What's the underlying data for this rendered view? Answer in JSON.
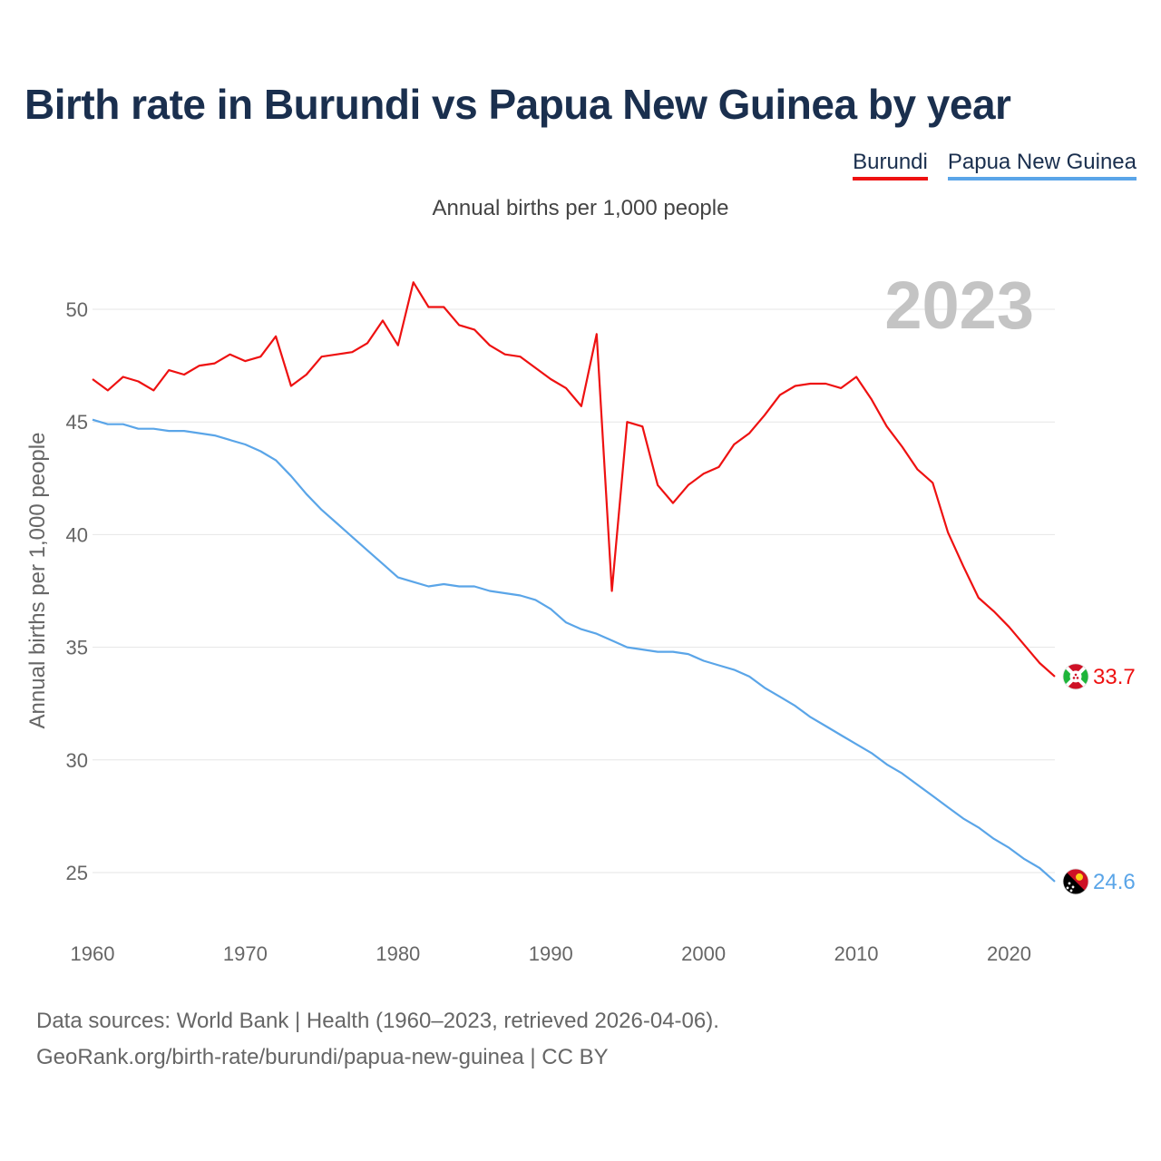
{
  "title": "Birth rate in Burundi vs Papua New Guinea by year",
  "subtitle": "Annual births per 1,000 people",
  "footer": {
    "line1": "Data sources: World Bank | Health (1960–2023, retrieved 2026-04-06).",
    "line2": "GeoRank.org/birth-rate/burundi/papua-new-guinea | CC BY"
  },
  "chart_data": {
    "type": "line",
    "title": "Birth rate in Burundi vs Papua New Guinea by year",
    "subtitle": "Annual births per 1,000 people",
    "xlabel": "",
    "ylabel": "Annual births per 1,000 people",
    "year_overlay": "2023",
    "xlim": [
      1960,
      2023
    ],
    "ylim": [
      23,
      53
    ],
    "xticks": [
      1960,
      1970,
      1980,
      1990,
      2000,
      2010,
      2020
    ],
    "yticks": [
      25,
      30,
      35,
      40,
      45,
      50
    ],
    "grid": true,
    "legend_position": "top-right",
    "x": [
      1960,
      1961,
      1962,
      1963,
      1964,
      1965,
      1966,
      1967,
      1968,
      1969,
      1970,
      1971,
      1972,
      1973,
      1974,
      1975,
      1976,
      1977,
      1978,
      1979,
      1980,
      1981,
      1982,
      1983,
      1984,
      1985,
      1986,
      1987,
      1988,
      1989,
      1990,
      1991,
      1992,
      1993,
      1994,
      1995,
      1996,
      1997,
      1998,
      1999,
      2000,
      2001,
      2002,
      2003,
      2004,
      2005,
      2006,
      2007,
      2008,
      2009,
      2010,
      2011,
      2012,
      2013,
      2014,
      2015,
      2016,
      2017,
      2018,
      2019,
      2020,
      2021,
      2022,
      2023
    ],
    "series": [
      {
        "name": "Burundi",
        "color": "#ee1111",
        "end_label": "33.7",
        "flag": "burundi-flag-icon",
        "values": [
          46.9,
          46.4,
          47.0,
          46.8,
          46.4,
          47.3,
          47.1,
          47.5,
          47.6,
          48.0,
          47.7,
          47.9,
          48.8,
          46.6,
          47.1,
          47.9,
          48.0,
          48.1,
          48.5,
          49.5,
          48.4,
          51.2,
          50.1,
          50.1,
          49.3,
          49.1,
          48.4,
          48.0,
          47.9,
          47.4,
          46.9,
          46.5,
          45.7,
          48.9,
          37.5,
          45.0,
          44.8,
          42.2,
          41.4,
          42.2,
          42.7,
          43.0,
          44.0,
          44.5,
          45.3,
          46.2,
          46.6,
          46.7,
          46.7,
          46.5,
          47.0,
          46.0,
          44.8,
          43.9,
          42.9,
          42.3,
          40.1,
          38.6,
          37.2,
          36.6,
          35.9,
          35.1,
          34.3,
          33.7
        ]
      },
      {
        "name": "Papua New Guinea",
        "color": "#5aa5e8",
        "end_label": "24.6",
        "flag": "papua-new-guinea-flag-icon",
        "values": [
          45.1,
          44.9,
          44.9,
          44.7,
          44.7,
          44.6,
          44.6,
          44.5,
          44.4,
          44.2,
          44.0,
          43.7,
          43.3,
          42.6,
          41.8,
          41.1,
          40.5,
          39.9,
          39.3,
          38.7,
          38.1,
          37.9,
          37.7,
          37.8,
          37.7,
          37.7,
          37.5,
          37.4,
          37.3,
          37.1,
          36.7,
          36.1,
          35.8,
          35.6,
          35.3,
          35.0,
          34.9,
          34.8,
          34.8,
          34.7,
          34.4,
          34.2,
          34.0,
          33.7,
          33.2,
          32.8,
          32.4,
          31.9,
          31.5,
          31.1,
          30.7,
          30.3,
          29.8,
          29.4,
          28.9,
          28.4,
          27.9,
          27.4,
          27.0,
          26.5,
          26.1,
          25.6,
          25.2,
          24.6
        ]
      }
    ]
  }
}
